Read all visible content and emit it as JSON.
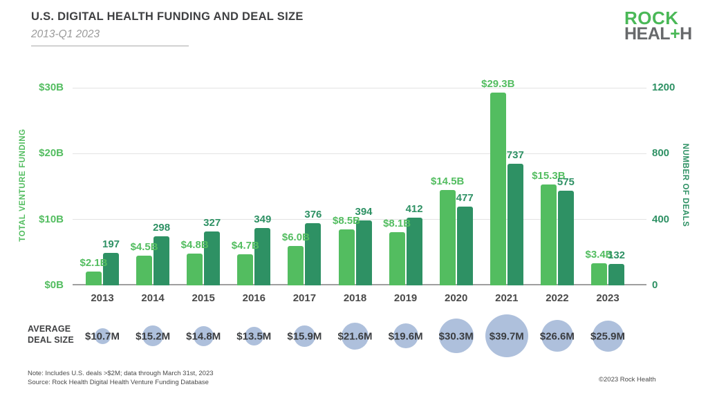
{
  "header": {
    "title": "U.S. DIGITAL HEALTH FUNDING AND DEAL SIZE",
    "subtitle": "2013-Q1 2023"
  },
  "logo": {
    "line1": "ROCK",
    "heal": "HEAL",
    "plus": "+",
    "h": "H"
  },
  "chart_data": {
    "type": "bar",
    "categories": [
      "2013",
      "2014",
      "2015",
      "2016",
      "2017",
      "2018",
      "2019",
      "2020",
      "2021",
      "2022",
      "2023"
    ],
    "series": [
      {
        "name": "Total Venture Funding ($B)",
        "axis": "left",
        "values": [
          2.1,
          4.5,
          4.8,
          4.7,
          6.0,
          8.5,
          8.1,
          14.5,
          29.3,
          15.3,
          3.4
        ],
        "labels": [
          "$2.1B",
          "$4.5B",
          "$4.8B",
          "$4.7B",
          "$6.0B",
          "$8.5B",
          "$8.1B",
          "$14.5B",
          "$29.3B",
          "$15.3B",
          "$3.4B"
        ],
        "color": "#53bd60"
      },
      {
        "name": "Number of Deals",
        "axis": "right",
        "values": [
          197,
          298,
          327,
          349,
          376,
          394,
          412,
          477,
          737,
          575,
          132
        ],
        "labels": [
          "197",
          "298",
          "327",
          "349",
          "376",
          "394",
          "412",
          "477",
          "737",
          "575",
          "132"
        ],
        "color": "#2e9164"
      }
    ],
    "left_axis": {
      "title": "TOTAL VENTURE FUNDING",
      "ticks": [
        "$0B",
        "$10B",
        "$20B",
        "$30B"
      ],
      "max": 30,
      "color": "#53bd60"
    },
    "right_axis": {
      "title": "NUMBER OF DEALS",
      "ticks": [
        "0",
        "400",
        "800",
        "1200"
      ],
      "max": 1200,
      "color": "#2e9164"
    },
    "grid": true,
    "legend_position": "none",
    "bubbles": {
      "label": "AVERAGE\nDEAL SIZE",
      "values": [
        10.7,
        15.2,
        14.8,
        13.5,
        15.9,
        21.6,
        19.6,
        30.3,
        39.7,
        26.6,
        25.9
      ],
      "labels": [
        "$10.7M",
        "$15.2M",
        "$14.8M",
        "$13.5M",
        "$15.9M",
        "$21.6M",
        "$19.6M",
        "$30.3M",
        "$39.7M",
        "$26.6M",
        "$25.9M"
      ],
      "color": "#aec0dc"
    }
  },
  "footer": {
    "note": "Note: Includes U.S. deals >$2M; data through March 31st, 2023",
    "source": "Source: Rock Health Digital Health Venture Funding Database",
    "copyright": "©2023 Rock Health"
  }
}
